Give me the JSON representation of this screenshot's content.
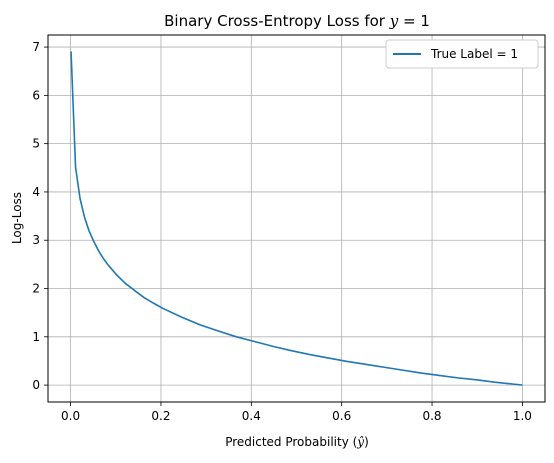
{
  "chart_data": {
    "type": "line",
    "title": {
      "prefix": "Binary Cross-Entropy Loss for ",
      "math_var": "y",
      "math_rest": " = 1"
    },
    "xlabel": {
      "prefix": "Predicted Probability (",
      "math": "ŷ",
      "suffix": ")"
    },
    "ylabel": "Log-Loss",
    "xlim": [
      -0.05,
      1.05
    ],
    "ylim": [
      -0.35,
      7.25
    ],
    "xticks": [
      0.0,
      0.2,
      0.4,
      0.6,
      0.8,
      1.0
    ],
    "xtick_labels": [
      "0.0",
      "0.2",
      "0.4",
      "0.6",
      "0.8",
      "1.0"
    ],
    "yticks": [
      0,
      1,
      2,
      3,
      4,
      5,
      6,
      7
    ],
    "ytick_labels": [
      "0",
      "1",
      "2",
      "3",
      "4",
      "5",
      "6",
      "7"
    ],
    "grid": true,
    "legend": {
      "placement": "top-right"
    },
    "series": [
      {
        "name": "True Label = 1",
        "color": "#1f77b4",
        "x": [
          0.001,
          0.011,
          0.021,
          0.031,
          0.041,
          0.052,
          0.062,
          0.072,
          0.082,
          0.092,
          0.102,
          0.122,
          0.143,
          0.163,
          0.183,
          0.204,
          0.245,
          0.286,
          0.327,
          0.367,
          0.408,
          0.449,
          0.49,
          0.531,
          0.571,
          0.612,
          0.653,
          0.694,
          0.735,
          0.776,
          0.816,
          0.857,
          0.898,
          0.939,
          0.98,
          1.0
        ],
        "y": [
          6.91,
          4.51,
          3.86,
          3.47,
          3.19,
          2.96,
          2.78,
          2.63,
          2.5,
          2.39,
          2.28,
          2.1,
          1.95,
          1.81,
          1.7,
          1.59,
          1.41,
          1.25,
          1.12,
          1.0,
          0.9,
          0.8,
          0.71,
          0.63,
          0.56,
          0.49,
          0.43,
          0.37,
          0.31,
          0.25,
          0.2,
          0.15,
          0.11,
          0.06,
          0.02,
          0.0
        ]
      }
    ]
  }
}
